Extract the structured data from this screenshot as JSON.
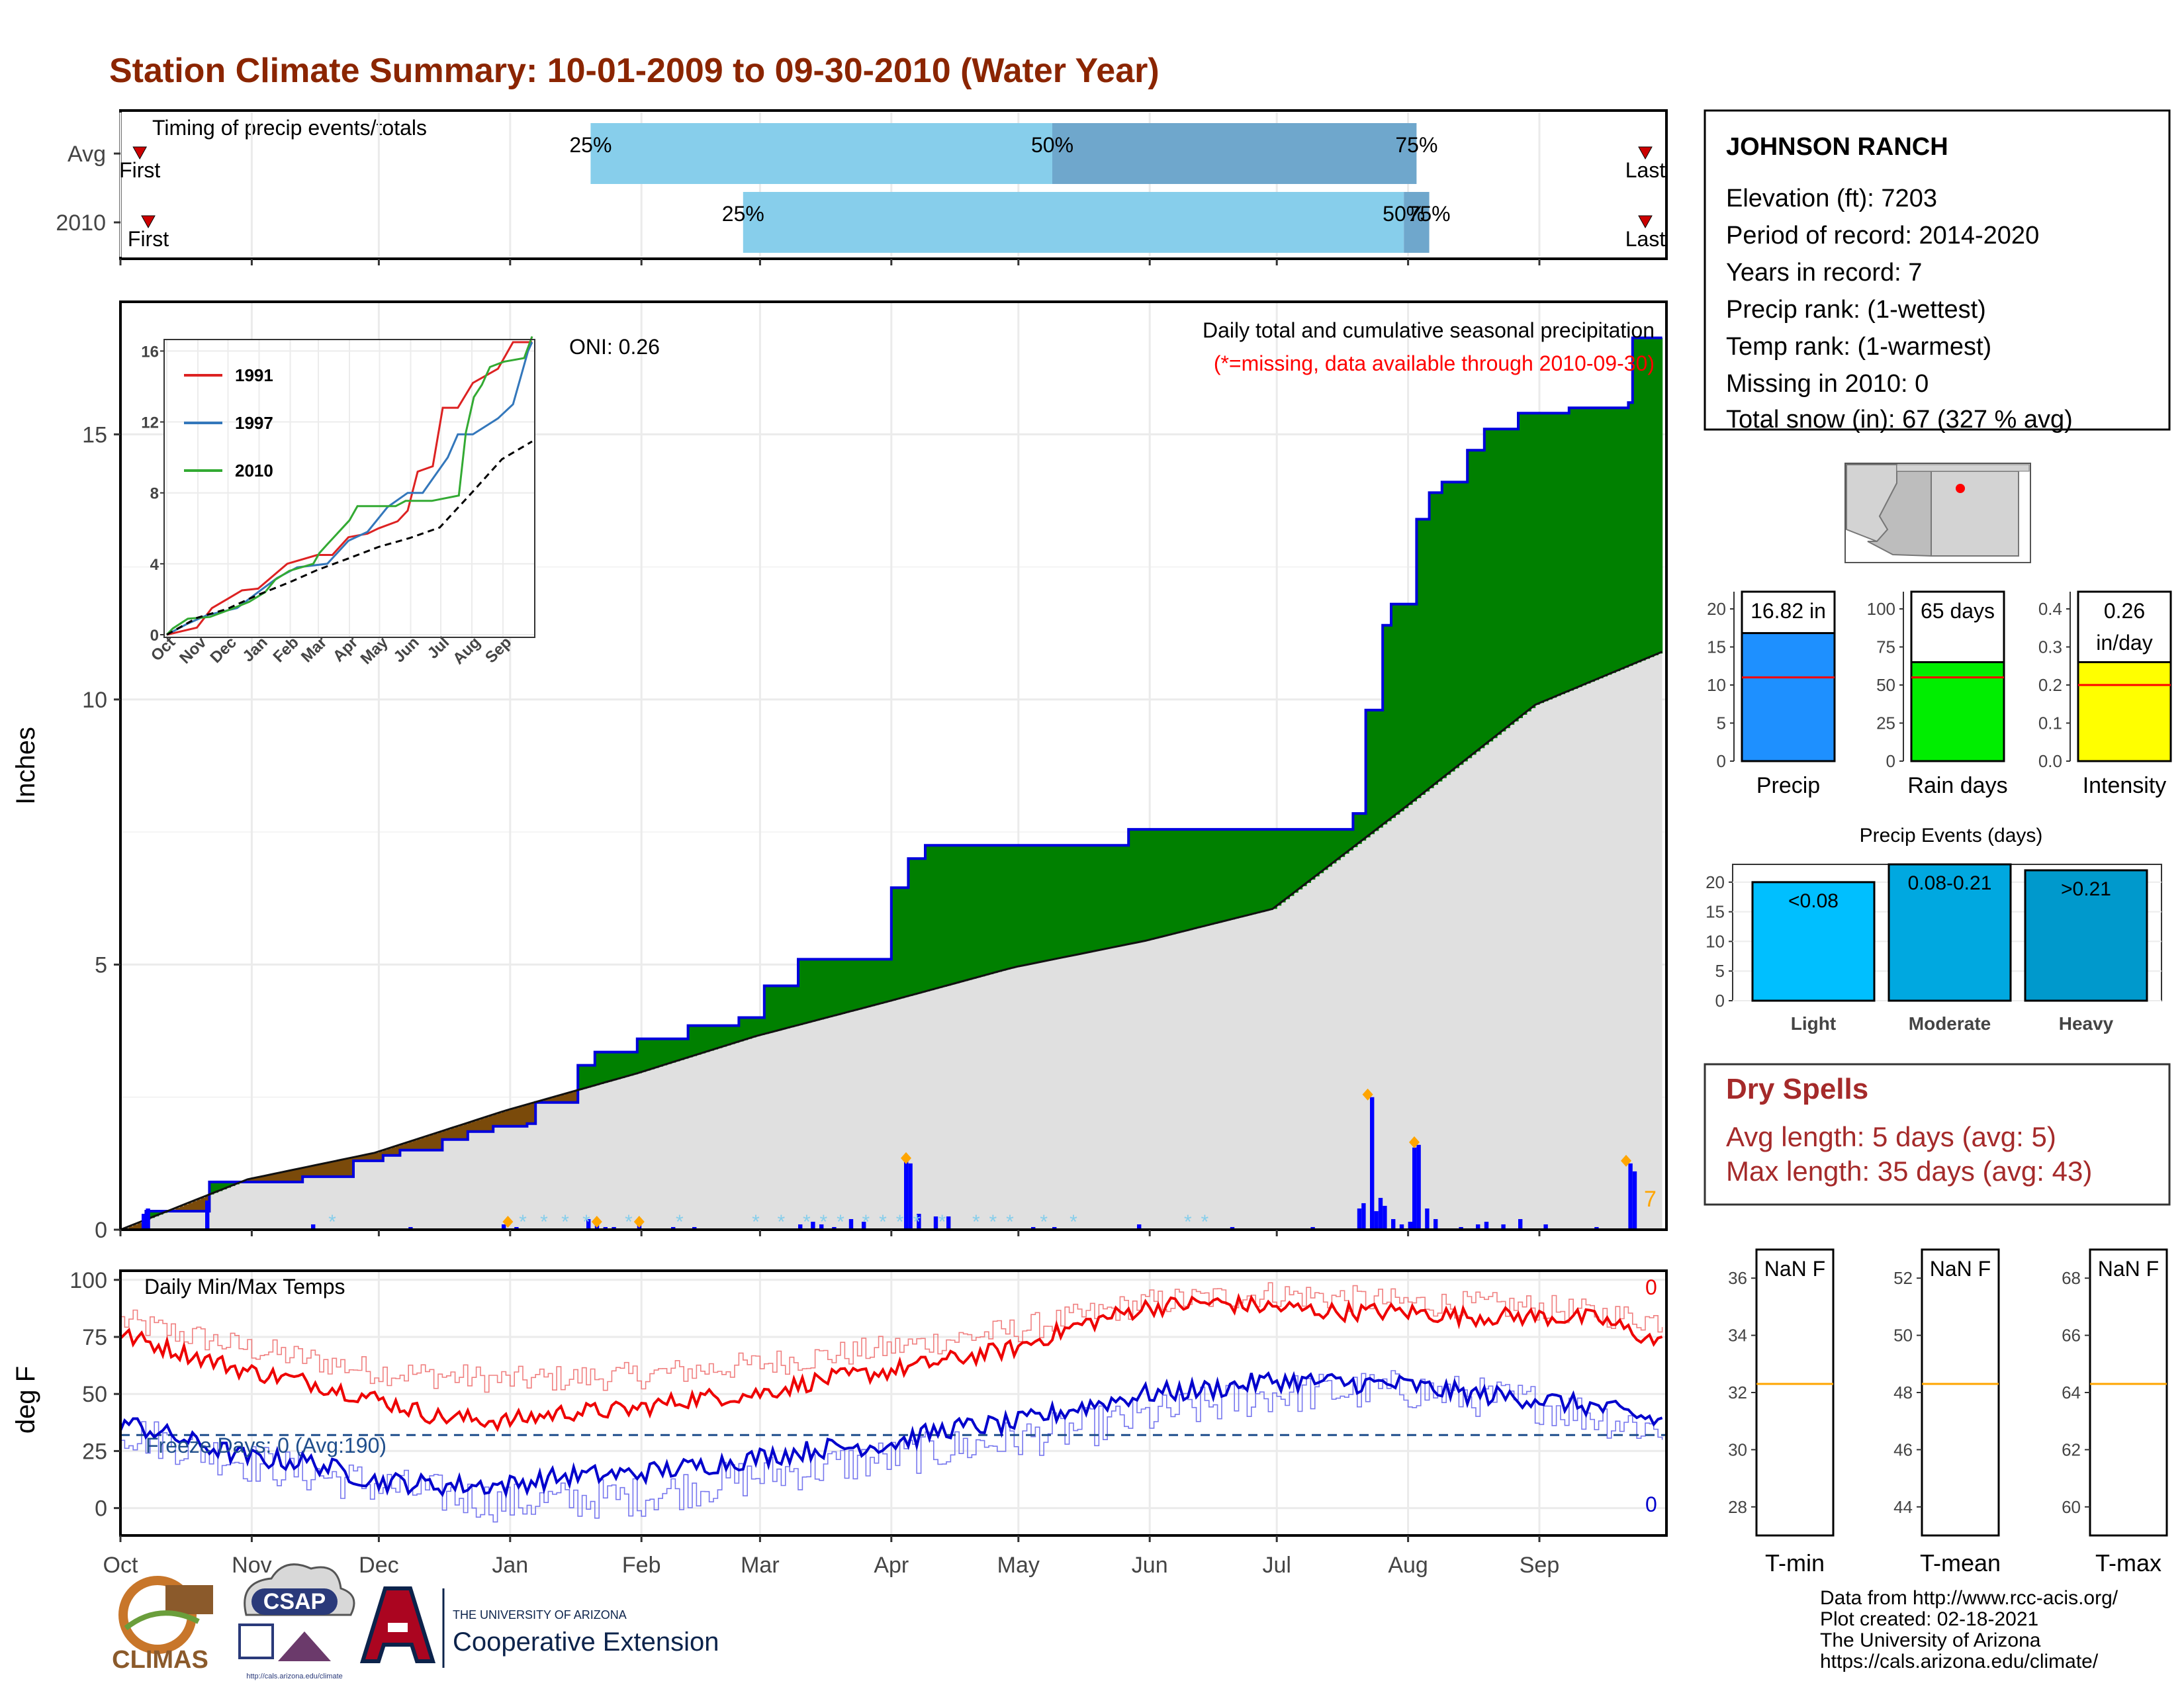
{
  "title": "Station Climate Summary: 10-01-2009 to 09-30-2010 (Water Year)",
  "months": [
    "Oct",
    "Nov",
    "Dec",
    "Jan",
    "Feb",
    "Mar",
    "Apr",
    "May",
    "Jun",
    "Jul",
    "Aug",
    "Sep"
  ],
  "timing": {
    "label": "Timing of precip events/totals",
    "rows": [
      {
        "name": "Avg",
        "first_label": "First",
        "last_label": "Last",
        "q25_label": "25%",
        "q50_label": "50%",
        "q75_label": "75%",
        "first_day": 3,
        "q25_day": 111,
        "q50_day": 220,
        "q75_day": 306,
        "last_day": 360
      },
      {
        "name": "2010",
        "first_label": "First",
        "last_label": "Last",
        "q25_label": "25%",
        "q50_label": "50%",
        "q75_label": "75%",
        "first_day": 5,
        "q25_day": 147,
        "q50_day": 303,
        "q75_day": 309,
        "last_day": 360
      }
    ],
    "colors": {
      "light": "#87ceeb",
      "mid": "#6fa7cc",
      "marker": "#cc0000"
    }
  },
  "main_chart": {
    "ylabel": "Inches",
    "yticks": [
      0,
      5,
      10,
      15
    ],
    "ylim": [
      0,
      17.5
    ],
    "oni_label": "ONI: 0.26",
    "note1": "Daily total and cumulative seasonal precipitation",
    "note2": "(*=missing, data available through 2010-09-30)",
    "corner_value": "7",
    "colors": {
      "above": "#008000",
      "below": "#7a4a0a",
      "avg_fill": "#e0e0e0",
      "cum_line": "#0000dd",
      "daily_bar": "#0000ff",
      "big_event": "#ffa500",
      "snow": "#87ceeb",
      "note2": "#ff0000"
    }
  },
  "chart_data": [
    {
      "type": "area",
      "name": "cumulative precipitation",
      "title": "Daily total and cumulative seasonal precipitation",
      "ylabel": "Inches",
      "ylim": [
        0,
        17.5
      ],
      "x_unit": "day of water year (Oct 1 = 0)",
      "series": [
        {
          "name": "2010 cumulative",
          "x": [
            0,
            6,
            20,
            21,
            40,
            43,
            55,
            62,
            66,
            76,
            82,
            88,
            96,
            98,
            106,
            108,
            112,
            118,
            122,
            128,
            134,
            142,
            146,
            148,
            152,
            160,
            162,
            170,
            176,
            180,
            182,
            186,
            190,
            200,
            205,
            228,
            238,
            264,
            284,
            291,
            294,
            298,
            300,
            304,
            306,
            308,
            309,
            312,
            314,
            318,
            322,
            330,
            336,
            342,
            356,
            357,
            364
          ],
          "y": [
            0.0,
            0.35,
            0.35,
            0.9,
            0.9,
            1.0,
            1.3,
            1.4,
            1.5,
            1.7,
            1.85,
            1.95,
            2.0,
            2.4,
            2.4,
            3.1,
            3.35,
            3.35,
            3.6,
            3.6,
            3.85,
            3.85,
            4.0,
            4.0,
            4.6,
            5.1,
            5.1,
            5.1,
            5.1,
            5.1,
            6.45,
            7.0,
            7.25,
            7.25,
            7.25,
            7.25,
            7.55,
            7.55,
            7.55,
            7.85,
            9.8,
            11.4,
            11.8,
            11.8,
            13.4,
            13.4,
            13.9,
            14.1,
            14.1,
            14.7,
            15.1,
            15.4,
            15.4,
            15.5,
            15.6,
            16.82,
            16.82
          ]
        },
        {
          "name": "Avg cumulative",
          "x": [
            0,
            30,
            60,
            91,
            122,
            150,
            181,
            211,
            242,
            272,
            303,
            334,
            364
          ],
          "y": [
            0.0,
            0.95,
            1.45,
            2.25,
            2.95,
            3.65,
            4.3,
            4.95,
            5.45,
            6.05,
            7.95,
            9.9,
            10.9
          ]
        }
      ],
      "daily_bars": {
        "x": [
          5,
          6,
          20,
          45,
          68,
          90,
          93,
          110,
          112,
          114,
          116,
          122,
          130,
          135,
          160,
          163,
          165,
          168,
          172,
          175,
          185,
          186,
          188,
          192,
          195,
          215,
          220,
          240,
          262,
          281,
          292,
          293,
          295,
          296,
          297,
          298,
          300,
          302,
          304,
          305,
          306,
          308,
          310,
          316,
          320,
          322,
          326,
          330,
          336,
          348,
          356,
          357
        ],
        "y": [
          0.3,
          0.4,
          0.55,
          0.1,
          0.05,
          0.1,
          0.05,
          0.2,
          0.1,
          0.05,
          0.05,
          0.1,
          0.05,
          0.05,
          0.1,
          0.15,
          0.1,
          0.05,
          0.2,
          0.15,
          1.3,
          1.25,
          0.3,
          0.25,
          0.25,
          0.05,
          0.05,
          0.1,
          0.05,
          0.05,
          0.4,
          0.5,
          2.5,
          0.35,
          0.6,
          0.45,
          0.2,
          0.1,
          0.15,
          1.55,
          1.6,
          0.4,
          0.2,
          0.05,
          0.1,
          0.15,
          0.1,
          0.2,
          0.1,
          0.05,
          1.25,
          1.1
        ]
      },
      "big_events_x": [
        91,
        112,
        122,
        185,
        294,
        305,
        355
      ]
    },
    {
      "type": "line",
      "name": "inset cumulative comparison",
      "ylim": [
        0,
        16.5
      ],
      "yticks": [
        0,
        4,
        8,
        12,
        16
      ],
      "series": [
        {
          "name": "1991",
          "color": "#dd2222",
          "x": [
            0,
            30,
            45,
            60,
            75,
            91,
            120,
            150,
            165,
            181,
            200,
            211,
            230,
            240,
            250,
            265,
            275,
            290,
            305,
            330,
            345,
            364
          ],
          "y": [
            0,
            0.4,
            1.5,
            2.0,
            2.5,
            2.6,
            4.0,
            4.5,
            4.5,
            5.5,
            5.7,
            6.0,
            6.4,
            7.0,
            9.2,
            9.5,
            12.8,
            12.8,
            14.2,
            15.0,
            16.5,
            16.5
          ]
        },
        {
          "name": "1997",
          "color": "#3377bb",
          "x": [
            0,
            20,
            40,
            70,
            91,
            110,
            130,
            160,
            181,
            200,
            220,
            240,
            255,
            280,
            290,
            305,
            330,
            345,
            360,
            364
          ],
          "y": [
            0,
            0.6,
            1.1,
            1.5,
            2.4,
            3.2,
            3.8,
            4.0,
            5.3,
            5.8,
            7.2,
            8.0,
            8.0,
            10.0,
            11.3,
            11.3,
            12.2,
            13.0,
            16.0,
            16.5
          ]
        },
        {
          "name": "2010",
          "color": "#33aa33",
          "x": [
            0,
            6,
            21,
            43,
            62,
            82,
            98,
            108,
            122,
            146,
            152,
            160,
            182,
            190,
            228,
            238,
            264,
            291,
            298,
            306,
            314,
            322,
            336,
            356,
            364
          ],
          "y": [
            0,
            0.35,
            0.9,
            1.0,
            1.4,
            1.85,
            2.4,
            3.1,
            3.6,
            4.0,
            4.6,
            5.1,
            6.45,
            7.25,
            7.25,
            7.55,
            7.55,
            7.85,
            11.4,
            13.4,
            14.1,
            15.1,
            15.4,
            15.6,
            16.82
          ]
        },
        {
          "name": "Avg",
          "color": "#000000",
          "x": [
            0,
            30,
            60,
            91,
            122,
            150,
            181,
            211,
            242,
            272,
            303,
            334,
            364
          ],
          "y": [
            0,
            0.95,
            1.45,
            2.25,
            2.95,
            3.65,
            4.3,
            4.95,
            5.45,
            6.05,
            7.95,
            9.9,
            10.9
          ]
        }
      ]
    },
    {
      "type": "line",
      "name": "daily min/max temps",
      "title": "Daily Min/Max Temps",
      "ylabel": "deg F",
      "ylim": [
        -12,
        104
      ],
      "yticks": [
        0,
        25,
        50,
        75,
        100
      ],
      "max_anchors": {
        "x": [
          0,
          15,
          30,
          45,
          60,
          75,
          91,
          105,
          120,
          135,
          150,
          165,
          181,
          196,
          211,
          226,
          242,
          257,
          272,
          287,
          303,
          318,
          334,
          349,
          364
        ],
        "y": [
          76,
          68,
          60,
          55,
          48,
          40,
          38,
          42,
          43,
          48,
          50,
          56,
          60,
          65,
          70,
          80,
          88,
          90,
          88,
          86,
          86,
          84,
          84,
          83,
          72
        ]
      },
      "avgmax_anchors": {
        "x": [
          0,
          30,
          60,
          91,
          122,
          150,
          181,
          211,
          242,
          272,
          303,
          334,
          364
        ],
        "y": [
          82,
          70,
          60,
          56,
          58,
          63,
          70,
          78,
          90,
          94,
          90,
          88,
          82
        ]
      },
      "min_anchors": {
        "x": [
          0,
          15,
          30,
          45,
          60,
          75,
          91,
          105,
          120,
          135,
          150,
          165,
          181,
          196,
          211,
          226,
          242,
          257,
          272,
          287,
          303,
          318,
          334,
          349,
          364
        ],
        "y": [
          38,
          30,
          22,
          20,
          12,
          10,
          10,
          14,
          15,
          18,
          22,
          26,
          28,
          35,
          37,
          44,
          50,
          52,
          56,
          55,
          54,
          50,
          48,
          44,
          38
        ]
      },
      "avgmin_anchors": {
        "x": [
          0,
          30,
          60,
          91,
          122,
          150,
          181,
          211,
          242,
          272,
          303,
          334,
          364
        ],
        "y": [
          34,
          20,
          10,
          2,
          5,
          14,
          22,
          30,
          40,
          50,
          52,
          46,
          34
        ]
      },
      "freeze_line": 32,
      "colors": {
        "max": "#ee0000",
        "avg_max": "#f08080",
        "min": "#0000cc",
        "avg_min": "#7777ee",
        "freeze": "#1f4e8c"
      }
    }
  ],
  "temp_chart": {
    "label": "Daily Min/Max Temps",
    "ylabel": "deg F",
    "freeze_label": "Freeze Days: 0 (Avg:190)",
    "max_count": "0",
    "min_count": "0"
  },
  "station": {
    "name": "JOHNSON RANCH",
    "lines": [
      "Elevation (ft): 7203",
      "Period of record: 2014-2020",
      "Years in record: 7",
      "Precip rank:  (1-wettest)",
      "Temp rank:  (1-warmest)",
      "Missing in 2010: 0",
      "Total snow (in): 67 (327 % avg)"
    ]
  },
  "summary_bars": [
    {
      "name": "Precip",
      "value": 16.82,
      "avg": 11,
      "label": "16.82 in",
      "ymax": 20,
      "yticks": [
        "0",
        "5",
        "10",
        "15",
        "20"
      ],
      "color": "#1e90ff"
    },
    {
      "name": "Rain days",
      "value": 65,
      "avg": 55,
      "label": "65 days",
      "ymax": 100,
      "yticks": [
        "0",
        "25",
        "50",
        "75",
        "100"
      ],
      "color": "#00ee00"
    },
    {
      "name": "Intensity",
      "value": 0.26,
      "avg": 0.2,
      "label": "0.26\nin/day",
      "label_l1": "0.26",
      "label_l2": "in/day",
      "ymax": 0.4,
      "yticks": [
        "0.0",
        "0.1",
        "0.2",
        "0.3",
        "0.4"
      ],
      "color": "#ffff00"
    }
  ],
  "events": {
    "title": "Precip Events (days)",
    "yticks": [
      "0",
      "5",
      "10",
      "15",
      "20"
    ],
    "ymax": 23,
    "bars": [
      {
        "name": "Light",
        "value": 20,
        "label": "<0.08",
        "color": "#00bfff"
      },
      {
        "name": "Moderate",
        "value": 23,
        "label": "0.08-0.21",
        "color": "#00a8e0"
      },
      {
        "name": "Heavy",
        "value": 22,
        "label": ">0.21",
        "color": "#0099cc"
      }
    ]
  },
  "dry_spells": {
    "title": "Dry Spells",
    "avg_line": "Avg length: 5 days (avg: 5)",
    "max_line": "Max length: 35 days (avg: 43)",
    "color": "#a52a2a"
  },
  "temp_panels": [
    {
      "name": "T-min",
      "value_label": "NaN F",
      "yticks": [
        "28",
        "30",
        "32",
        "34",
        "36"
      ],
      "ymin": 27,
      "ymax": 37,
      "avg": 32.3
    },
    {
      "name": "T-mean",
      "value_label": "NaN F",
      "yticks": [
        "44",
        "46",
        "48",
        "50",
        "52"
      ],
      "ymin": 43,
      "ymax": 53,
      "avg": 48.3
    },
    {
      "name": "T-max",
      "value_label": "NaN F",
      "yticks": [
        "60",
        "62",
        "64",
        "66",
        "68"
      ],
      "ymin": 59,
      "ymax": 69,
      "avg": 64.3
    }
  ],
  "footer": {
    "lines": [
      "Data from http://www.rcc-acis.org/",
      "Plot created: 02-18-2021",
      "The University of Arizona",
      "https://cals.arizona.edu/climate/"
    ]
  },
  "logos": {
    "climas": "CLIMAS",
    "csap": "CSAP",
    "csap_url": "http://cals.arizona.edu/climate",
    "ua_small": "THE UNIVERSITY OF ARIZONA",
    "ua_big": "Cooperative Extension"
  }
}
